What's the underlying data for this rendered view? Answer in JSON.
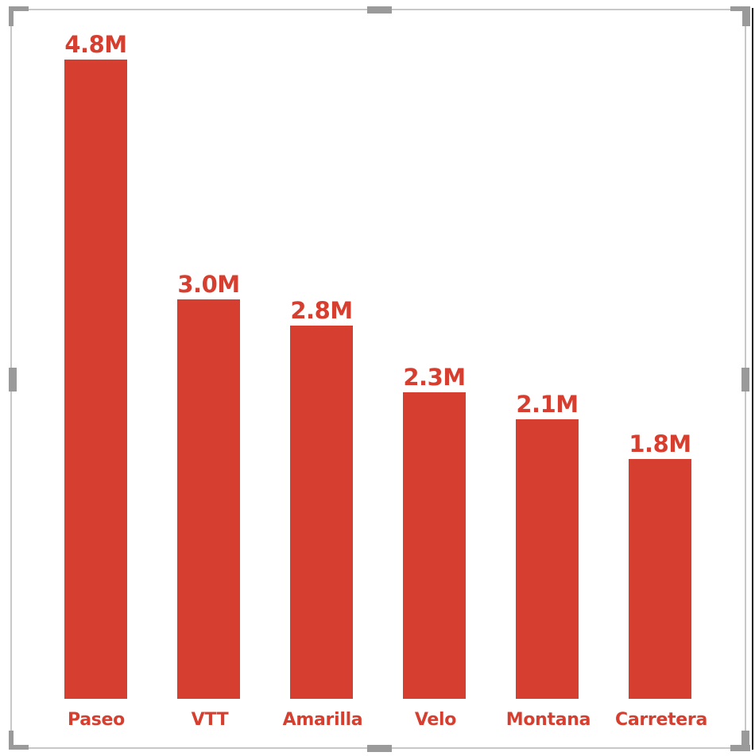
{
  "chart_data": {
    "type": "bar",
    "title": "",
    "xlabel": "",
    "ylabel": "",
    "categories": [
      "Paseo",
      "VTT",
      "Amarilla",
      "Velo",
      "Montana",
      "Carretera"
    ],
    "values": [
      4.8,
      3.0,
      2.8,
      2.3,
      2.1,
      1.8
    ],
    "value_unit": "M",
    "data_labels": [
      "4.8M",
      "3.0M",
      "2.8M",
      "2.3M",
      "2.1M",
      "1.8M"
    ],
    "ylim": [
      0,
      4.8
    ],
    "grid": false,
    "legend": "none",
    "bar_color": "#d63f2f"
  },
  "colors": {
    "bar": "#d63f2f",
    "frame": "#c8c8c8",
    "handle": "#9a9a9a"
  }
}
